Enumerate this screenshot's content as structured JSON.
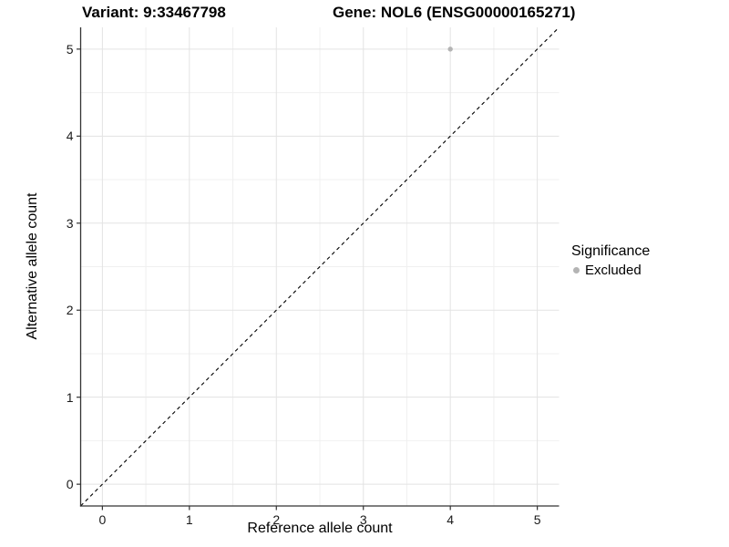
{
  "figure": {
    "background": "#ffffff"
  },
  "chart_data": {
    "type": "scatter",
    "titles": {
      "left": "Variant: 9:33467798",
      "right": "Gene: NOL6 (ENSG00000165271)"
    },
    "xlabel": "Reference allele count",
    "ylabel": "Alternative allele count",
    "x_ticks": [
      0,
      1,
      2,
      3,
      4,
      5
    ],
    "y_ticks": [
      0,
      1,
      2,
      3,
      4,
      5
    ],
    "xlim": [
      -0.25,
      5.25
    ],
    "ylim": [
      -0.25,
      5.25
    ],
    "grid": {
      "show": true,
      "major_color": "#e3e3e3",
      "minor_color": "#f0f0f0",
      "minor_step": 0.5
    },
    "axis_color": "#333333",
    "tick_label_color": "#1a1a1a",
    "reference_line": {
      "kind": "identity",
      "style": "dashed",
      "color": "#000000"
    },
    "series": [
      {
        "name": "Excluded",
        "color": "#b4b4b4",
        "points": [
          {
            "x": 4,
            "y": 5
          }
        ]
      }
    ],
    "legend": {
      "title": "Significance",
      "position": "right",
      "entries": [
        {
          "label": "Excluded",
          "color": "#b4b4b4"
        }
      ]
    }
  }
}
